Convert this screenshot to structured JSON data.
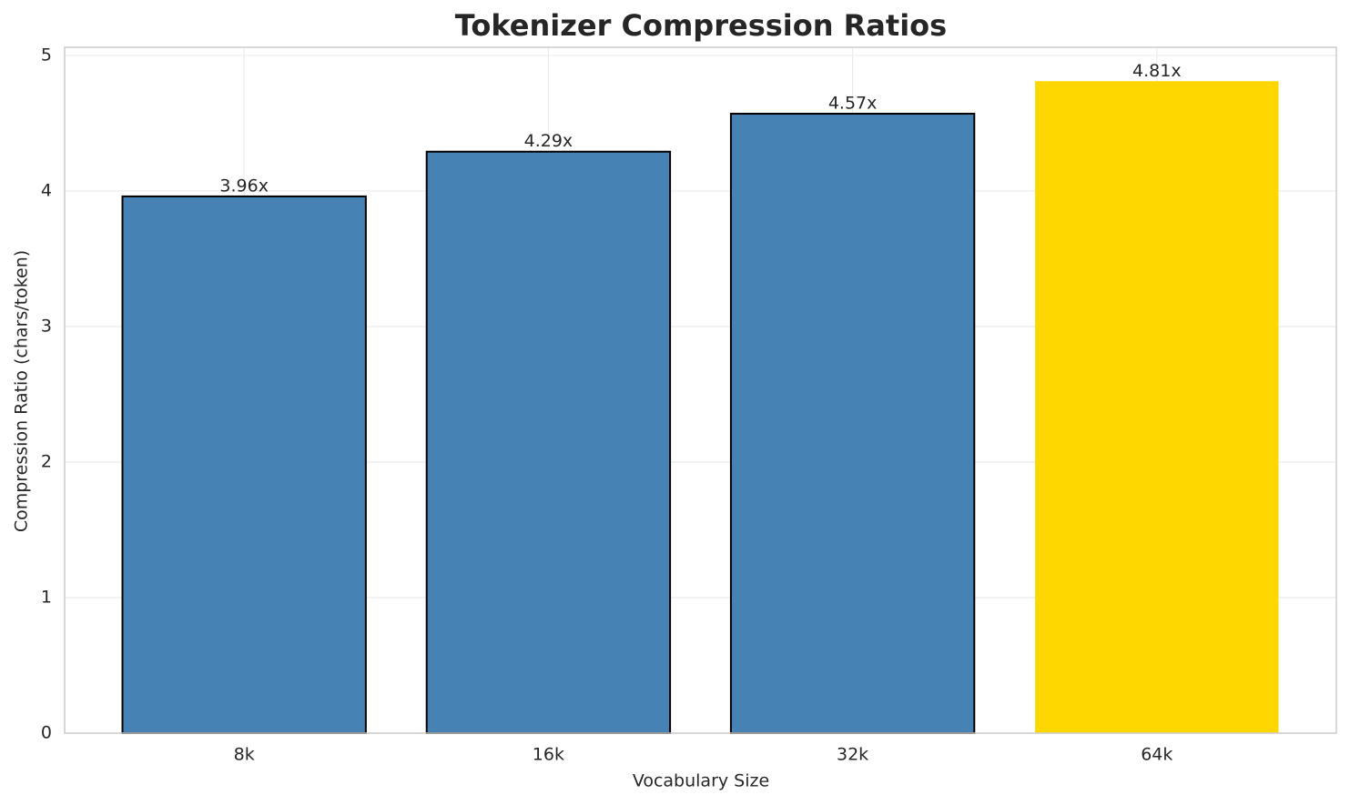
{
  "chart_data": {
    "type": "bar",
    "title": "Tokenizer Compression Ratios",
    "x_label": "Vocabulary Size",
    "y_label": "Compression Ratio (chars/token)",
    "categories": [
      "8k",
      "16k",
      "32k",
      "64k"
    ],
    "values": [
      3.96,
      4.29,
      4.57,
      4.81
    ],
    "value_labels": [
      "3.96x",
      "4.29x",
      "4.57x",
      "4.81x"
    ],
    "colors": [
      "#4682b4",
      "#4682b4",
      "#4682b4",
      "#ffd700"
    ],
    "edge_colors": [
      "#000000",
      "#000000",
      "#000000",
      null
    ],
    "ylim": [
      0,
      5.06
    ],
    "yticks": [
      0,
      1,
      2,
      3,
      4,
      5
    ],
    "grid": true
  }
}
